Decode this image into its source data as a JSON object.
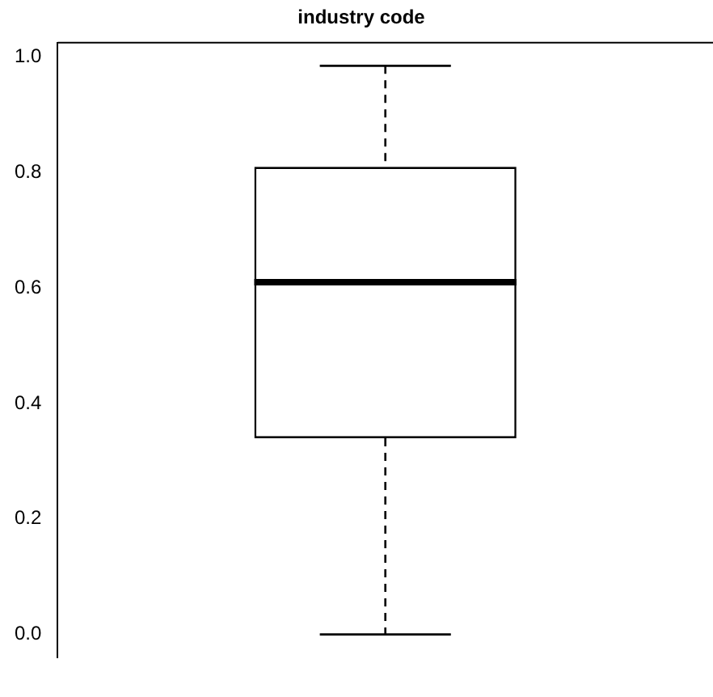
{
  "chart_data": {
    "type": "box",
    "title": "industry code",
    "categories": [
      null
    ],
    "boxes": [
      {
        "low": 0.0,
        "q1": 0.34,
        "median": 0.61,
        "q3": 0.81,
        "high": 0.985
      }
    ],
    "color": "#000000",
    "ylim": [
      -0.04,
      1.025
    ],
    "yticks": [
      {
        "value": 0,
        "label": "0.0"
      },
      {
        "value": 0.2,
        "label": "0.2"
      },
      {
        "value": 0.4,
        "label": "0.4"
      },
      {
        "value": 0.6,
        "label": "0.6"
      },
      {
        "value": 0.8,
        "label": "0.8"
      },
      {
        "value": 1,
        "label": "1.0"
      }
    ],
    "grid": false,
    "legend": false
  }
}
